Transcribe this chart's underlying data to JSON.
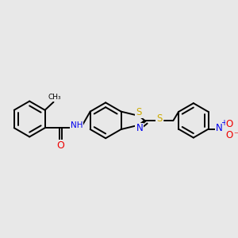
{
  "bg_color": "#e8e8e8",
  "bond_color": "#000000",
  "bond_width": 1.4,
  "atom_colors": {
    "S": "#ccaa00",
    "N": "#0000ee",
    "O": "#ee0000",
    "H": "#555555",
    "C": "#000000"
  },
  "font_size": 8.0
}
